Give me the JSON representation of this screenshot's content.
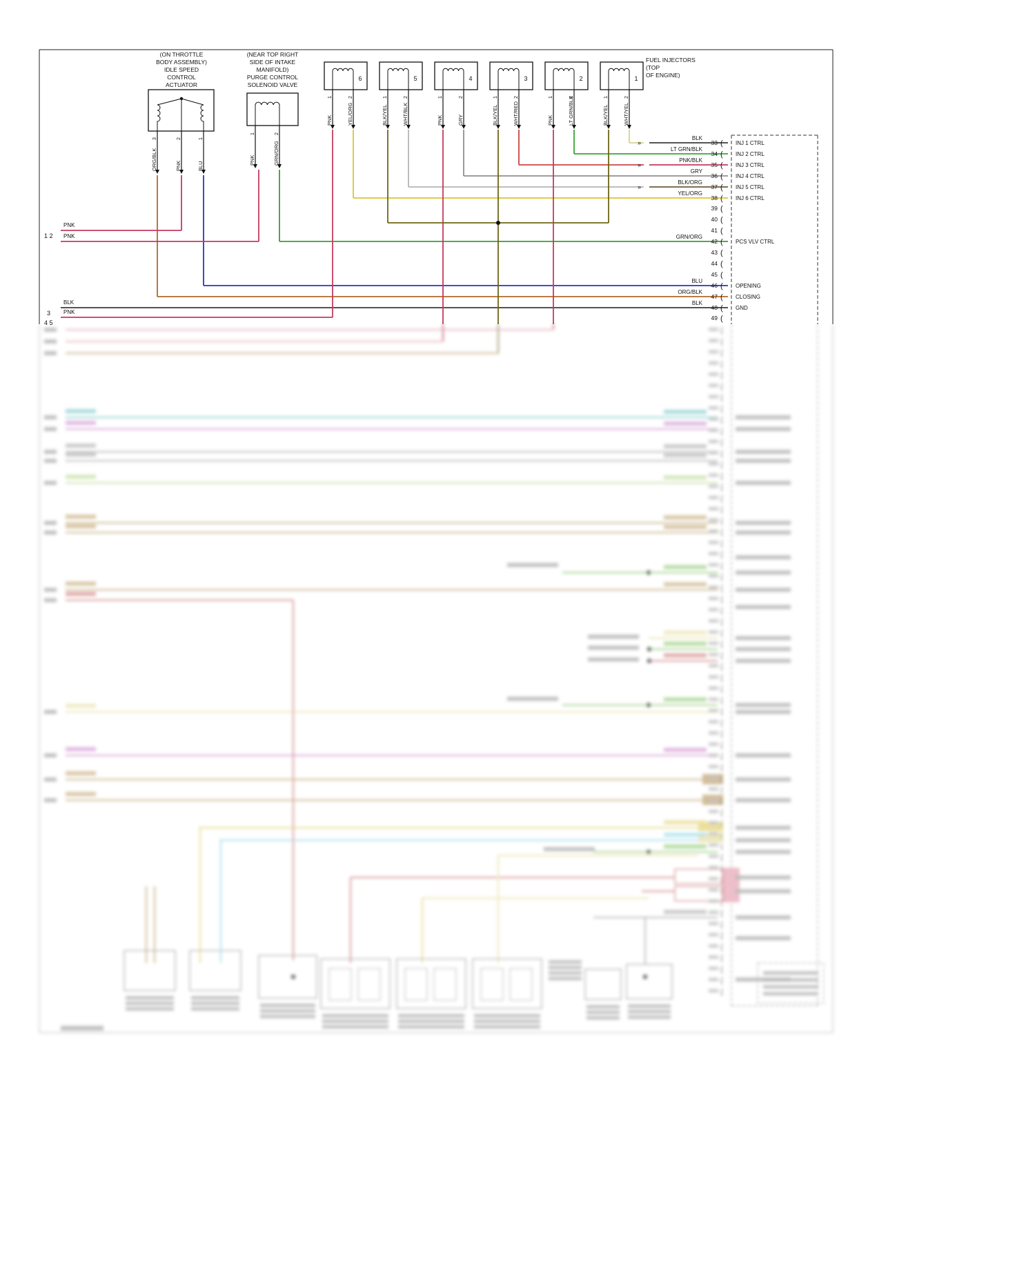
{
  "palette": {
    "PNK": "#c23a5e",
    "ORG/BLK": "#b06a28",
    "BLU": "#2a35b4",
    "GRN/ORG": "#3f9a35",
    "YEL/ORG": "#d8c62e",
    "BLK/YEL": "#6e6414",
    "WHT/BLK": "#b5b5b5",
    "GRY": "#8f8f8f",
    "WHT/RED": "#cc4444",
    "LT GRN/BLK": "#36a436",
    "WHT/YEL": "#d8d28a",
    "BLK": "#1a1a1a",
    "PNK/BLK": "#c23a5e",
    "BLK/ORG": "#6a5a3a"
  },
  "blur_colors": {
    "teal": "#74c6c6",
    "violet": "#cf8ecf",
    "gray": "#a9a9a9",
    "green": "#8cc870",
    "ltgreen": "#b9d890",
    "tan": "#bfa36f",
    "red": "#cf7a7a",
    "yellow": "#e3d275",
    "paleyellow": "#e6dea0",
    "cyan": "#93d8e8",
    "pink": "#e4a4b4",
    "pinkDark": "#c23a5e",
    "olive": "#8a7a3a"
  },
  "icons": {
    "terminal": "(",
    "splice": "»"
  },
  "components": {
    "idle_actuator": {
      "title": [
        "(ON THROTTLE",
        "BODY ASSEMBLY)",
        "IDLE SPEED",
        "CONTROL",
        "ACTUATOR"
      ],
      "pins": [
        {
          "num": "3",
          "wire": "ORG/BLK"
        },
        {
          "num": "2",
          "wire": "PNK"
        },
        {
          "num": "1",
          "wire": "BLU"
        }
      ]
    },
    "purge_valve": {
      "title": [
        "(NEAR TOP RIGHT",
        "SIDE OF INTAKE",
        "MANIFOLD)",
        "PURGE CONTROL",
        "SOLENOID VALVE"
      ],
      "pins": [
        {
          "num": "1",
          "wire": "PNK"
        },
        {
          "num": "2",
          "wire": "GRN/ORG"
        }
      ]
    },
    "injectors": {
      "title": [
        "FUEL INJECTORS",
        "(TOP",
        "OF ENGINE)"
      ],
      "units": [
        {
          "label": "6",
          "pins": [
            {
              "num": "1",
              "wire": "PNK"
            },
            {
              "num": "2",
              "wire": "YEL/ORG"
            }
          ]
        },
        {
          "label": "5",
          "pins": [
            {
              "num": "1",
              "wire": "BLK/YEL"
            },
            {
              "num": "2",
              "wire": "WHT/BLK"
            }
          ]
        },
        {
          "label": "4",
          "pins": [
            {
              "num": "1",
              "wire": "PNK"
            },
            {
              "num": "2",
              "wire": "GRY"
            }
          ]
        },
        {
          "label": "3",
          "pins": [
            {
              "num": "1",
              "wire": "BLK/YEL"
            },
            {
              "num": "2",
              "wire": "WHT/RED"
            }
          ]
        },
        {
          "label": "2",
          "pins": [
            {
              "num": "1",
              "wire": "PNK"
            },
            {
              "num": "2",
              "wire": "LT GRN/BLK"
            }
          ]
        },
        {
          "label": "1",
          "pins": [
            {
              "num": "1",
              "wire": "BLK/YEL"
            },
            {
              "num": "2",
              "wire": "WHT/YEL"
            }
          ]
        }
      ]
    }
  },
  "ecm_connector": {
    "rows": [
      {
        "pin": "33",
        "wire": "BLK",
        "label": "INJ 1 CTRL",
        "splice": true
      },
      {
        "pin": "34",
        "wire": "LT GRN/BLK",
        "label": "INJ 2 CTRL"
      },
      {
        "pin": "35",
        "wire": "PNK/BLK",
        "label": "INJ 3 CTRL",
        "splice": true
      },
      {
        "pin": "36",
        "wire": "GRY",
        "label": "INJ 4 CTRL"
      },
      {
        "pin": "37",
        "wire": "BLK/ORG",
        "label": "INJ 5 CTRL",
        "splice": true
      },
      {
        "pin": "38",
        "wire": "YEL/ORG",
        "label": "INJ 6 CTRL"
      },
      {
        "pin": "39"
      },
      {
        "pin": "40"
      },
      {
        "pin": "41"
      },
      {
        "pin": "42",
        "wire": "GRN/ORG",
        "label": "PCS VLV CTRL"
      },
      {
        "pin": "43"
      },
      {
        "pin": "44"
      },
      {
        "pin": "45"
      },
      {
        "pin": "46",
        "wire": "BLU",
        "label": "OPENING"
      },
      {
        "pin": "47",
        "wire": "ORG/BLK",
        "label": "CLOSING"
      },
      {
        "pin": "48",
        "wire": "BLK",
        "label": "GND"
      },
      {
        "pin": "49"
      }
    ]
  },
  "left_refs": [
    {
      "num": "1 2",
      "wires": [
        "PNK",
        "PNK"
      ]
    },
    {
      "num": "3",
      "wires": [
        "BLK"
      ]
    },
    {
      "num": "4 5",
      "wires": [
        "PNK"
      ]
    }
  ]
}
